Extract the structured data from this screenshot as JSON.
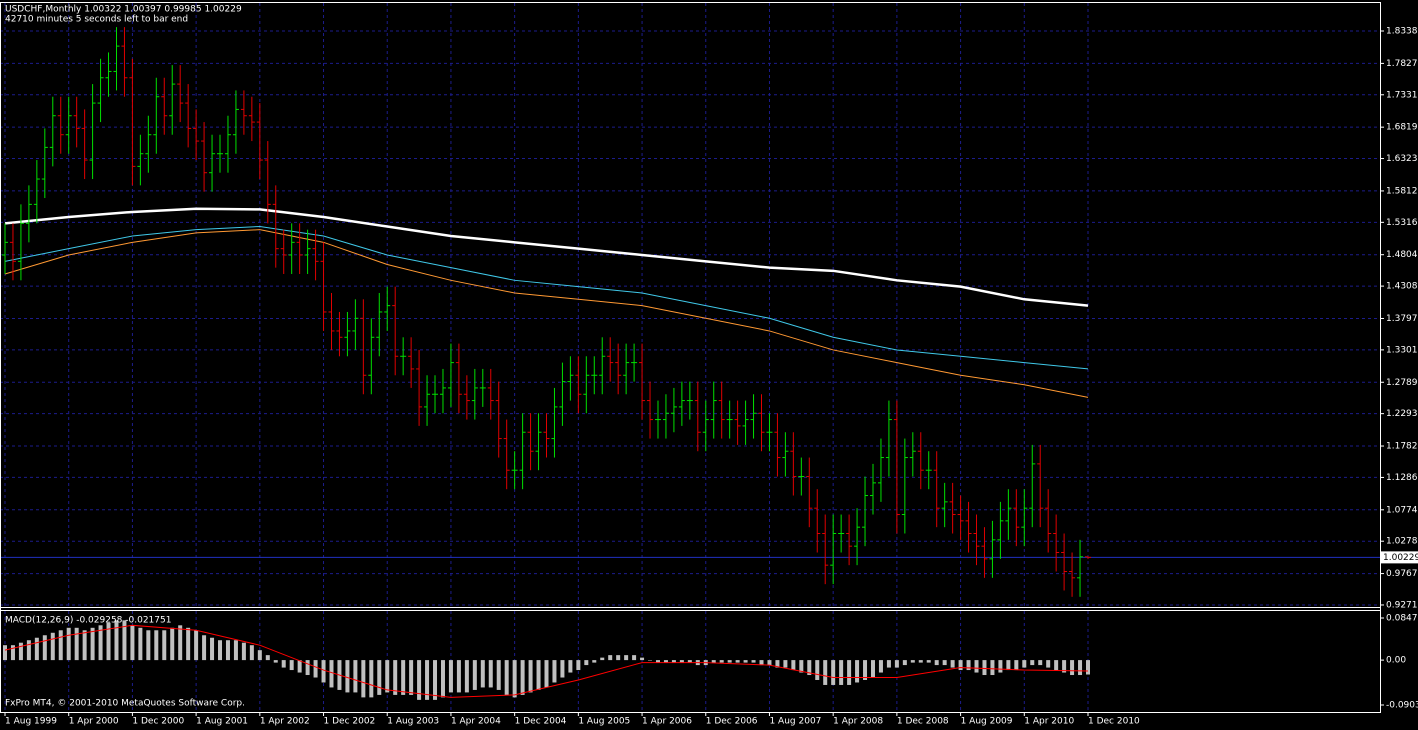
{
  "chart_data": [
    {
      "type": "ohlc",
      "title": "USDCHF,Monthly  1.00322 1.00397 0.99985 1.00229",
      "subtitle": "42710 minutes 5 seconds left to bar end",
      "copyright": "FxPro MT4, © 2001-2010 MetaQuotes Software Corp.",
      "categories": [
        "1 Aug 1999",
        null,
        null,
        null,
        null,
        null,
        null,
        null,
        "1 Apr 2000",
        null,
        null,
        null,
        null,
        null,
        null,
        null,
        "1 Dec 2000",
        null,
        null,
        null,
        null,
        null,
        null,
        null,
        "1 Aug 2001",
        null,
        null,
        null,
        null,
        null,
        null,
        null,
        "1 Apr 2002",
        null,
        null,
        null,
        null,
        null,
        null,
        null,
        "1 Dec 2002",
        null,
        null,
        null,
        null,
        null,
        null,
        null,
        "1 Aug 2003",
        null,
        null,
        null,
        null,
        null,
        null,
        null,
        "1 Apr 2004",
        null,
        null,
        null,
        null,
        null,
        null,
        null,
        "1 Dec 2004",
        null,
        null,
        null,
        null,
        null,
        null,
        null,
        "1 Aug 2005",
        null,
        null,
        null,
        null,
        null,
        null,
        null,
        "1 Apr 2006",
        null,
        null,
        null,
        null,
        null,
        null,
        null,
        "1 Dec 2006",
        null,
        null,
        null,
        null,
        null,
        null,
        null,
        "1 Aug 2007",
        null,
        null,
        null,
        null,
        null,
        null,
        null,
        "1 Apr 2008",
        null,
        null,
        null,
        null,
        null,
        null,
        null,
        "1 Dec 2008",
        null,
        null,
        null,
        null,
        null,
        null,
        null,
        "1 Aug 2009",
        null,
        null,
        null,
        null,
        null,
        null,
        null,
        "1 Apr 2010",
        null,
        null,
        null,
        null,
        null,
        null,
        null,
        "1 Dec 2010"
      ],
      "open": [
        1.48,
        1.5,
        1.47,
        1.53,
        1.56,
        1.6,
        1.65,
        1.7,
        1.67,
        1.7,
        1.68,
        1.63,
        1.72,
        1.76,
        1.77,
        1.81,
        1.76,
        1.62,
        1.64,
        1.67,
        1.73,
        1.7,
        1.75,
        1.72,
        1.68,
        1.66,
        1.61,
        1.64,
        1.64,
        1.67,
        1.71,
        1.7,
        1.69,
        1.63,
        1.56,
        1.49,
        1.48,
        1.5,
        1.48,
        1.49,
        1.47,
        1.39,
        1.36,
        1.35,
        1.36,
        1.38,
        1.29,
        1.35,
        1.39,
        1.4,
        1.32,
        1.32,
        1.3,
        1.24,
        1.26,
        1.26,
        1.27,
        1.31,
        1.26,
        1.25,
        1.27,
        1.27,
        1.25,
        1.19,
        1.14,
        1.14,
        1.2,
        1.17,
        1.2,
        1.19,
        1.24,
        1.28,
        1.29,
        1.26,
        1.29,
        1.29,
        1.32,
        1.31,
        1.29,
        1.31,
        1.31,
        1.25,
        1.22,
        1.22,
        1.23,
        1.24,
        1.25,
        1.25,
        1.2,
        1.22,
        1.25,
        1.22,
        1.22,
        1.21,
        1.22,
        1.23,
        1.2,
        1.2,
        1.16,
        1.17,
        1.13,
        1.13,
        1.08,
        1.04,
        0.99,
        1.04,
        1.04,
        1.02,
        1.05,
        1.1,
        1.12,
        1.16,
        1.22,
        1.07,
        1.16,
        1.17,
        1.14,
        1.14,
        1.08,
        1.09,
        1.07,
        1.06,
        1.04,
        1.02,
        1.0,
        1.03,
        1.06,
        1.08,
        1.05,
        1.08,
        1.15,
        1.08,
        1.04,
        1.01,
        0.98,
        0.97,
        1.00322
      ],
      "high": [
        1.53,
        1.53,
        1.56,
        1.59,
        1.63,
        1.68,
        1.73,
        1.73,
        1.73,
        1.73,
        1.71,
        1.75,
        1.79,
        1.8,
        1.84,
        1.84,
        1.79,
        1.67,
        1.7,
        1.76,
        1.76,
        1.78,
        1.78,
        1.75,
        1.71,
        1.69,
        1.67,
        1.67,
        1.7,
        1.74,
        1.74,
        1.73,
        1.72,
        1.66,
        1.59,
        1.52,
        1.53,
        1.53,
        1.52,
        1.52,
        1.5,
        1.42,
        1.39,
        1.39,
        1.41,
        1.41,
        1.38,
        1.42,
        1.43,
        1.43,
        1.35,
        1.35,
        1.33,
        1.29,
        1.29,
        1.3,
        1.34,
        1.34,
        1.29,
        1.3,
        1.3,
        1.3,
        1.28,
        1.22,
        1.17,
        1.23,
        1.23,
        1.23,
        1.23,
        1.27,
        1.31,
        1.32,
        1.32,
        1.32,
        1.32,
        1.35,
        1.35,
        1.34,
        1.34,
        1.34,
        1.34,
        1.28,
        1.25,
        1.26,
        1.27,
        1.28,
        1.28,
        1.28,
        1.25,
        1.28,
        1.28,
        1.25,
        1.25,
        1.25,
        1.26,
        1.26,
        1.23,
        1.23,
        1.2,
        1.2,
        1.16,
        1.16,
        1.11,
        1.07,
        1.07,
        1.07,
        1.07,
        1.08,
        1.13,
        1.15,
        1.19,
        1.25,
        1.25,
        1.19,
        1.2,
        1.2,
        1.17,
        1.17,
        1.12,
        1.12,
        1.1,
        1.09,
        1.07,
        1.05,
        1.06,
        1.09,
        1.11,
        1.11,
        1.11,
        1.18,
        1.18,
        1.11,
        1.07,
        1.04,
        1.01,
        1.03,
        1.00397
      ],
      "low": [
        1.45,
        1.44,
        1.44,
        1.5,
        1.53,
        1.57,
        1.62,
        1.64,
        1.64,
        1.65,
        1.6,
        1.6,
        1.69,
        1.73,
        1.74,
        1.73,
        1.59,
        1.59,
        1.61,
        1.64,
        1.67,
        1.67,
        1.69,
        1.65,
        1.63,
        1.58,
        1.58,
        1.61,
        1.61,
        1.64,
        1.67,
        1.66,
        1.6,
        1.53,
        1.46,
        1.45,
        1.45,
        1.45,
        1.45,
        1.44,
        1.36,
        1.33,
        1.32,
        1.32,
        1.33,
        1.26,
        1.26,
        1.32,
        1.36,
        1.29,
        1.29,
        1.27,
        1.21,
        1.21,
        1.23,
        1.23,
        1.24,
        1.23,
        1.22,
        1.22,
        1.24,
        1.22,
        1.16,
        1.11,
        1.11,
        1.11,
        1.14,
        1.14,
        1.16,
        1.16,
        1.21,
        1.25,
        1.23,
        1.23,
        1.26,
        1.26,
        1.28,
        1.26,
        1.26,
        1.28,
        1.22,
        1.19,
        1.19,
        1.19,
        1.2,
        1.21,
        1.22,
        1.17,
        1.17,
        1.19,
        1.19,
        1.19,
        1.18,
        1.18,
        1.19,
        1.17,
        1.17,
        1.13,
        1.13,
        1.1,
        1.1,
        1.05,
        1.01,
        0.96,
        0.96,
        1.01,
        0.99,
        0.99,
        1.02,
        1.07,
        1.09,
        1.13,
        1.04,
        1.04,
        1.13,
        1.11,
        1.11,
        1.05,
        1.05,
        1.04,
        1.03,
        1.01,
        0.99,
        0.97,
        0.97,
        1.0,
        1.03,
        1.02,
        1.02,
        1.05,
        1.05,
        1.01,
        0.98,
        0.95,
        0.94,
        0.94,
        0.99985
      ],
      "close": [
        1.5,
        1.47,
        1.53,
        1.56,
        1.6,
        1.65,
        1.7,
        1.67,
        1.7,
        1.68,
        1.63,
        1.72,
        1.76,
        1.77,
        1.81,
        1.76,
        1.62,
        1.64,
        1.67,
        1.73,
        1.7,
        1.75,
        1.72,
        1.68,
        1.66,
        1.61,
        1.64,
        1.64,
        1.67,
        1.71,
        1.7,
        1.69,
        1.63,
        1.56,
        1.49,
        1.48,
        1.5,
        1.48,
        1.49,
        1.47,
        1.39,
        1.36,
        1.35,
        1.36,
        1.38,
        1.29,
        1.35,
        1.39,
        1.4,
        1.32,
        1.32,
        1.3,
        1.24,
        1.26,
        1.26,
        1.27,
        1.31,
        1.26,
        1.25,
        1.27,
        1.27,
        1.25,
        1.19,
        1.14,
        1.14,
        1.2,
        1.17,
        1.2,
        1.19,
        1.24,
        1.28,
        1.29,
        1.26,
        1.29,
        1.29,
        1.32,
        1.31,
        1.29,
        1.31,
        1.31,
        1.25,
        1.22,
        1.22,
        1.23,
        1.24,
        1.25,
        1.25,
        1.2,
        1.22,
        1.25,
        1.22,
        1.22,
        1.21,
        1.22,
        1.23,
        1.2,
        1.2,
        1.16,
        1.17,
        1.13,
        1.13,
        1.08,
        1.04,
        0.99,
        1.04,
        1.04,
        1.02,
        1.05,
        1.1,
        1.12,
        1.16,
        1.22,
        1.07,
        1.16,
        1.17,
        1.14,
        1.14,
        1.08,
        1.09,
        1.07,
        1.06,
        1.04,
        1.02,
        1.0,
        1.03,
        1.06,
        1.08,
        1.05,
        1.08,
        1.15,
        1.08,
        1.04,
        1.01,
        0.98,
        0.97,
        1.00322,
        1.00229
      ],
      "up_color": "#00e000",
      "down_color": "#e00000",
      "series": [
        {
          "color": "#ffffff",
          "x": [
            "1 Aug 1999",
            "1 Apr 2000",
            "1 Dec 2000",
            "1 Aug 2001",
            "1 Apr 2002",
            "1 Dec 2002",
            "1 Aug 2003",
            "1 Apr 2004",
            "1 Dec 2004",
            "1 Aug 2005",
            "1 Apr 2006",
            "1 Dec 2006",
            "1 Aug 2007",
            "1 Apr 2008",
            "1 Dec 2008",
            "1 Aug 2009",
            "1 Apr 2010",
            "1 Dec 2010"
          ],
          "values": [
            1.53,
            1.54,
            1.548,
            1.553,
            1.552,
            1.54,
            1.525,
            1.51,
            1.5,
            1.49,
            1.48,
            1.47,
            1.46,
            1.455,
            1.44,
            1.43,
            1.41,
            1.4
          ]
        },
        {
          "color": "#40c8e8",
          "x": [
            "1 Aug 1999",
            "1 Apr 2000",
            "1 Dec 2000",
            "1 Aug 2001",
            "1 Apr 2002",
            "1 Dec 2002",
            "1 Aug 2003",
            "1 Apr 2004",
            "1 Dec 2004",
            "1 Aug 2005",
            "1 Apr 2006",
            "1 Dec 2006",
            "1 Aug 2007",
            "1 Apr 2008",
            "1 Dec 2008",
            "1 Aug 2009",
            "1 Apr 2010",
            "1 Dec 2010"
          ],
          "values": [
            1.47,
            1.49,
            1.51,
            1.52,
            1.525,
            1.51,
            1.48,
            1.46,
            1.44,
            1.43,
            1.42,
            1.4,
            1.38,
            1.35,
            1.33,
            1.32,
            1.31,
            1.3
          ]
        },
        {
          "color": "#ff9933",
          "x": [
            "1 Aug 1999",
            "1 Apr 2000",
            "1 Dec 2000",
            "1 Aug 2001",
            "1 Apr 2002",
            "1 Dec 2002",
            "1 Aug 2003",
            "1 Apr 2004",
            "1 Dec 2004",
            "1 Aug 2005",
            "1 Apr 2006",
            "1 Dec 2006",
            "1 Aug 2007",
            "1 Apr 2008",
            "1 Dec 2008",
            "1 Aug 2009",
            "1 Apr 2010",
            "1 Dec 2010"
          ],
          "values": [
            1.45,
            1.48,
            1.5,
            1.515,
            1.52,
            1.5,
            1.465,
            1.44,
            1.42,
            1.41,
            1.4,
            1.38,
            1.36,
            1.33,
            1.31,
            1.29,
            1.275,
            1.255
          ]
        }
      ],
      "current_price": 1.00229,
      "ylim": [
        0.9239,
        1.8781
      ],
      "yticks": [
        1.83385,
        {
          "value": 1.7827,
          "label": "1.78270"
        },
        {
          "value": 1.7331,
          "label": "1.73310"
        },
        1.68195,
        1.63235,
        {
          "value": 1.5812,
          "label": "1.58120"
        },
        {
          "value": 1.5316,
          "label": "1.53160"
        },
        1.48045,
        1.43085,
        {
          "value": 1.3797,
          "label": "1.37970"
        },
        {
          "value": 1.3301,
          "label": "1.33010"
        },
        1.27895,
        1.22935,
        {
          "value": 1.1782,
          "label": "1.17820"
        },
        {
          "value": 1.1286,
          "label": "1.12860"
        },
        1.07745,
        1.02785,
        {
          "value": 0.9767,
          "label": "0.97670"
        },
        {
          "value": 0.9271,
          "label": "0.92710"
        }
      ],
      "grid": true
    },
    {
      "type": "macd",
      "title": "MACD(12,26,9) -0.029258 -0.021751",
      "color": "#c0c0c0",
      "values": [
        0.03,
        0.03,
        0.035,
        0.04,
        0.045,
        0.05,
        0.055,
        0.06,
        0.065,
        0.065,
        0.06,
        0.065,
        0.07,
        0.075,
        0.08,
        0.08,
        0.07,
        0.065,
        0.06,
        0.06,
        0.06,
        0.065,
        0.07,
        0.065,
        0.06,
        0.05,
        0.045,
        0.04,
        0.04,
        0.04,
        0.035,
        0.03,
        0.02,
        0.01,
        -0.005,
        -0.015,
        -0.02,
        -0.025,
        -0.03,
        -0.035,
        -0.045,
        -0.055,
        -0.06,
        -0.065,
        -0.065,
        -0.075,
        -0.075,
        -0.07,
        -0.065,
        -0.07,
        -0.07,
        -0.07,
        -0.08,
        -0.08,
        -0.08,
        -0.075,
        -0.065,
        -0.065,
        -0.065,
        -0.06,
        -0.055,
        -0.055,
        -0.06,
        -0.07,
        -0.075,
        -0.07,
        -0.065,
        -0.06,
        -0.055,
        -0.045,
        -0.035,
        -0.025,
        -0.02,
        -0.01,
        -0.005,
        0.005,
        0.01,
        0.01,
        0.01,
        0.01,
        0.005,
        0,
        -0.005,
        -0.005,
        -0.005,
        -0.005,
        -0.005,
        -0.01,
        -0.01,
        -0.005,
        -0.005,
        -0.005,
        -0.005,
        -0.005,
        -0.005,
        -0.01,
        -0.01,
        -0.015,
        -0.015,
        -0.02,
        -0.025,
        -0.03,
        -0.04,
        -0.05,
        -0.05,
        -0.05,
        -0.05,
        -0.045,
        -0.04,
        -0.035,
        -0.025,
        -0.015,
        -0.015,
        -0.01,
        -0.005,
        -0.005,
        -0.005,
        -0.01,
        -0.01,
        -0.015,
        -0.02,
        -0.02,
        -0.025,
        -0.03,
        -0.03,
        -0.025,
        -0.02,
        -0.02,
        -0.015,
        -0.01,
        -0.01,
        -0.015,
        -0.02,
        -0.025,
        -0.03,
        -0.03,
        -0.029
      ],
      "signal": {
        "color": "#ff0000",
        "x": [
          "1 Aug 1999",
          "1 Apr 2000",
          "1 Dec 2000",
          "1 Aug 2001",
          "1 Apr 2002",
          "1 Dec 2002",
          "1 Aug 2003",
          "1 Apr 2004",
          "1 Dec 2004",
          "1 Aug 2005",
          "1 Apr 2006",
          "1 Dec 2006",
          "1 Aug 2007",
          "1 Apr 2008",
          "1 Dec 2008",
          "1 Aug 2009",
          "1 Apr 2010",
          "1 Dec 2010"
        ],
        "values": [
          0.02,
          0.05,
          0.07,
          0.06,
          0.03,
          -0.02,
          -0.06,
          -0.075,
          -0.07,
          -0.04,
          -0.005,
          -0.005,
          -0.01,
          -0.035,
          -0.035,
          -0.015,
          -0.02,
          -0.022
        ]
      },
      "ylim": [
        -0.1044,
        0.0988
      ],
      "yticks": [
        0.08472,
        {
          "value": 0,
          "label": "0.00"
        },
        -0.09031
      ]
    }
  ]
}
